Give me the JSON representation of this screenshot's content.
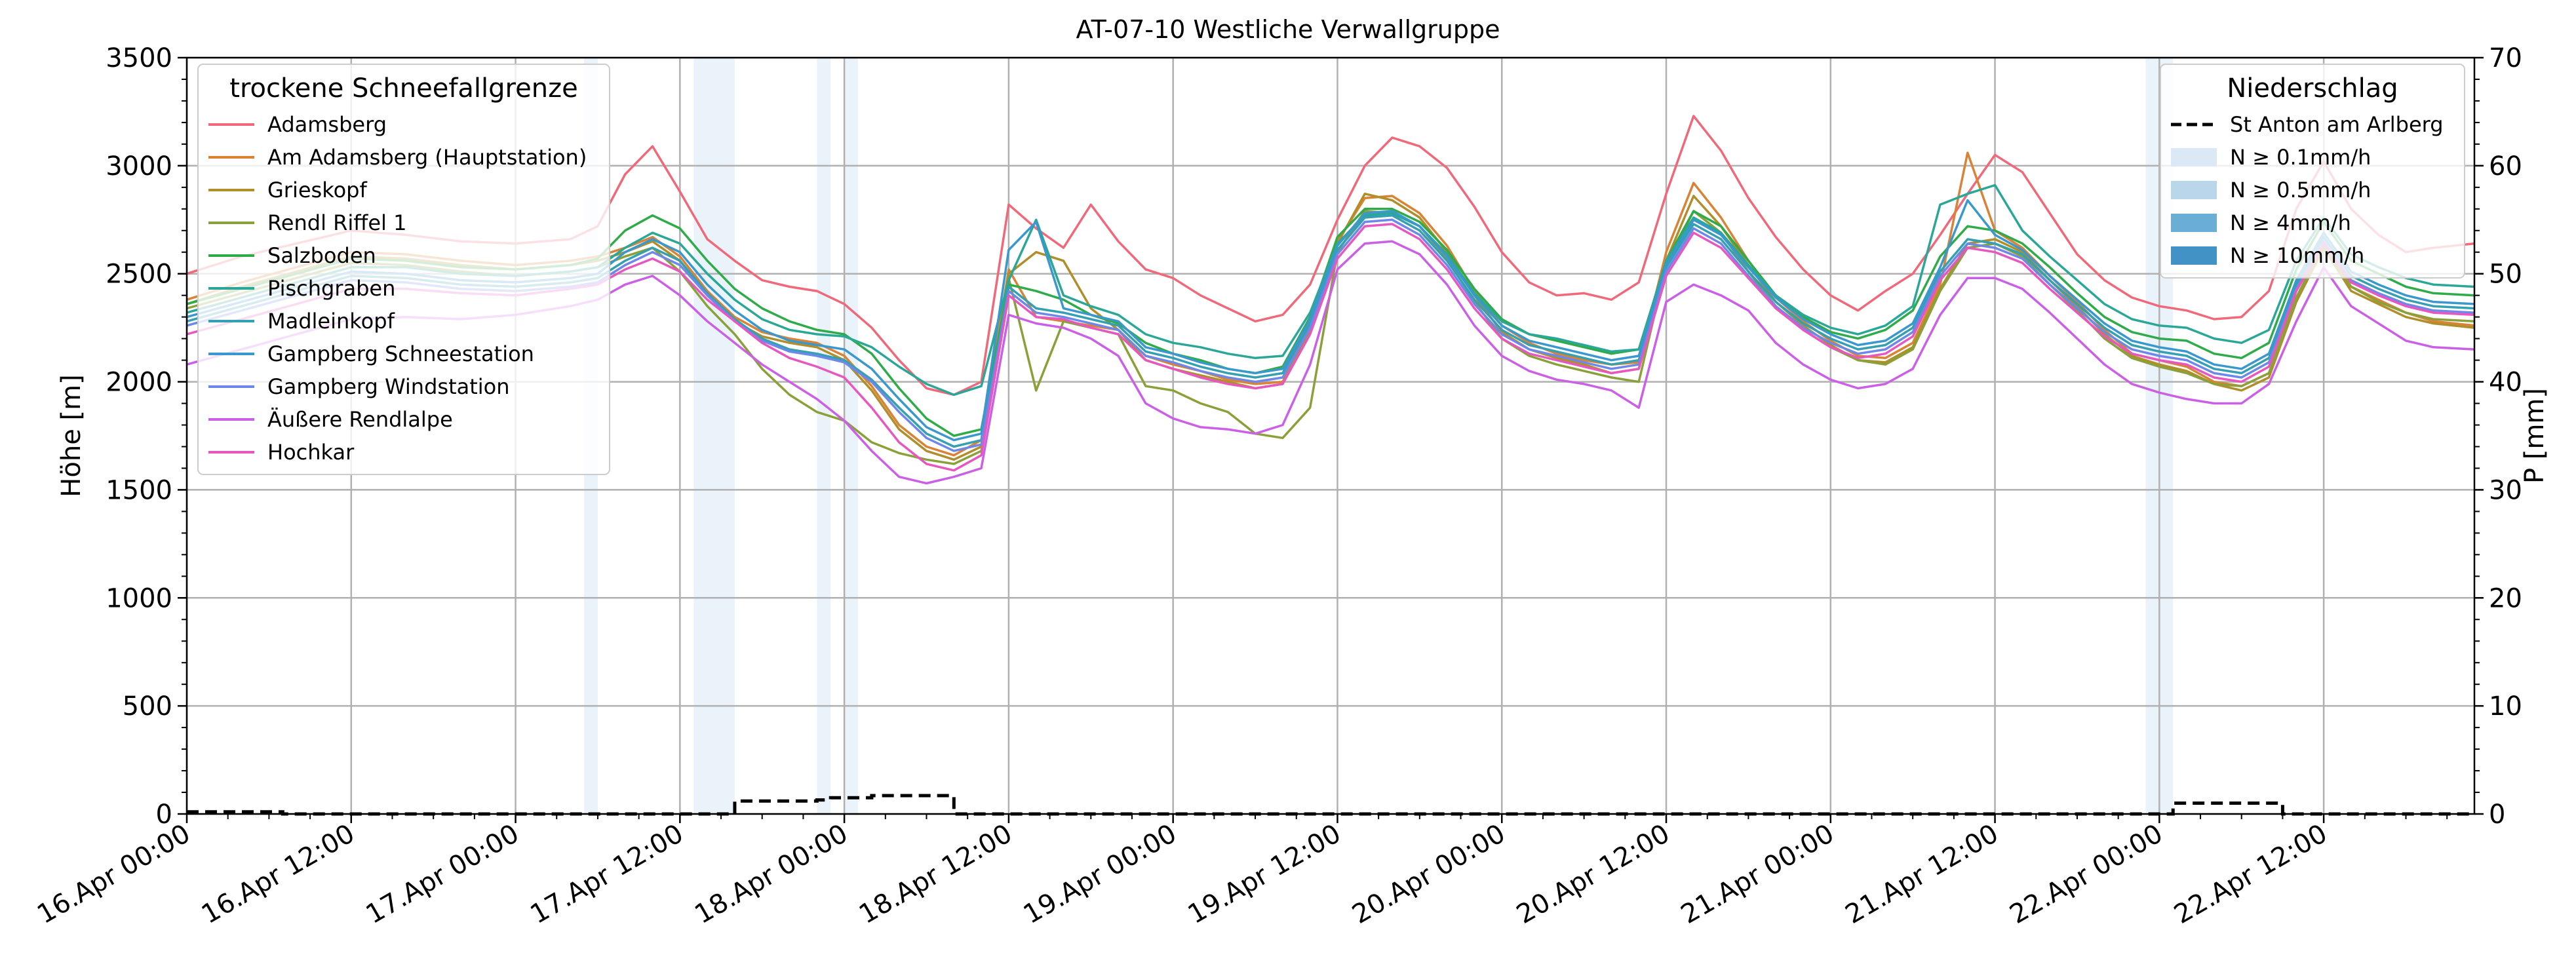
{
  "chart_data": {
    "type": "line",
    "title": "AT-07-10 Westliche Verwallgruppe",
    "ylabel": "Höhe [m]",
    "y2label": "P [mm]",
    "ylim": [
      0,
      3500
    ],
    "y2lim": [
      0,
      70
    ],
    "yticks": [
      0,
      500,
      1000,
      1500,
      2000,
      2500,
      3000,
      3500
    ],
    "y2ticks": [
      0,
      10,
      20,
      30,
      40,
      50,
      60,
      70
    ],
    "xlim_hours": [
      0,
      167
    ],
    "xticks": [
      {
        "h": 0,
        "label": "16.Apr 00:00"
      },
      {
        "h": 12,
        "label": "16.Apr 12:00"
      },
      {
        "h": 24,
        "label": "17.Apr 00:00"
      },
      {
        "h": 36,
        "label": "17.Apr 12:00"
      },
      {
        "h": 48,
        "label": "18.Apr 00:00"
      },
      {
        "h": 60,
        "label": "18.Apr 12:00"
      },
      {
        "h": 72,
        "label": "19.Apr 00:00"
      },
      {
        "h": 84,
        "label": "19.Apr 12:00"
      },
      {
        "h": 96,
        "label": "20.Apr 00:00"
      },
      {
        "h": 108,
        "label": "20.Apr 12:00"
      },
      {
        "h": 120,
        "label": "21.Apr 00:00"
      },
      {
        "h": 132,
        "label": "21.Apr 12:00"
      },
      {
        "h": 144,
        "label": "22.Apr 00:00"
      },
      {
        "h": 156,
        "label": "22.Apr 12:00"
      }
    ],
    "grid": true,
    "legend_left": {
      "title": "trockene Schneefallgrenze",
      "placement": "upper-left"
    },
    "legend_right": {
      "title": "Niederschlag",
      "placement": "upper-right",
      "entries": [
        {
          "label": "St Anton am Arlberg",
          "kind": "dashed-line",
          "color": "#000000"
        },
        {
          "label": "N ≥ 0.1mm/h",
          "kind": "patch",
          "color": "#dbe9f6"
        },
        {
          "label": "N ≥ 0.5mm/h",
          "kind": "patch",
          "color": "#bad6eb"
        },
        {
          "label": "N ≥ 4mm/h",
          "kind": "patch",
          "color": "#6aaed6"
        },
        {
          "label": "N ≥ 10mm/h",
          "kind": "patch",
          "color": "#4292c6"
        }
      ]
    },
    "precip_bands": [
      {
        "start_h": 29.0,
        "end_h": 30.0,
        "level": "N ≥ 0.1mm/h"
      },
      {
        "start_h": 37.0,
        "end_h": 40.0,
        "level": "N ≥ 0.1mm/h"
      },
      {
        "start_h": 46.0,
        "end_h": 47.0,
        "level": "N ≥ 0.1mm/h"
      },
      {
        "start_h": 48.0,
        "end_h": 49.0,
        "level": "N ≥ 0.1mm/h"
      },
      {
        "start_h": 143.0,
        "end_h": 145.0,
        "level": "N ≥ 0.1mm/h"
      }
    ],
    "precip_cumulative": {
      "name": "St Anton am Arlberg",
      "axis": "right",
      "points_h": [
        0,
        4,
        7,
        30,
        38,
        40,
        45,
        46,
        47,
        49,
        50,
        55,
        56,
        57,
        144,
        145,
        152,
        153,
        167
      ],
      "values_mm": [
        0.2,
        0.2,
        0,
        0,
        0,
        1.2,
        1.2,
        1.3,
        1.5,
        1.5,
        1.7,
        1.7,
        0,
        0,
        0,
        1.0,
        1.0,
        0,
        0
      ]
    },
    "series_time_h": [
      0,
      4,
      8,
      12,
      16,
      20,
      24,
      28,
      30,
      32,
      34,
      36,
      38,
      40,
      42,
      44,
      46,
      48,
      50,
      52,
      54,
      56,
      58,
      60,
      62,
      64,
      66,
      68,
      70,
      72,
      74,
      76,
      78,
      80,
      82,
      84,
      86,
      88,
      90,
      92,
      94,
      96,
      98,
      100,
      102,
      104,
      106,
      108,
      110,
      112,
      114,
      116,
      118,
      120,
      122,
      124,
      126,
      128,
      130,
      132,
      134,
      136,
      138,
      140,
      142,
      144,
      146,
      148,
      150,
      152,
      154,
      156,
      158,
      160,
      162,
      164,
      167
    ],
    "series": [
      {
        "name": "Adamsberg",
        "color": "#f0697a",
        "values": [
          2500,
          2580,
          2640,
          2700,
          2680,
          2650,
          2640,
          2660,
          2720,
          2960,
          3090,
          2880,
          2660,
          2560,
          2470,
          2440,
          2420,
          2360,
          2250,
          2100,
          1970,
          1940,
          2000,
          2820,
          2710,
          2620,
          2820,
          2650,
          2520,
          2480,
          2400,
          2340,
          2280,
          2310,
          2450,
          2750,
          3000,
          3130,
          3090,
          2990,
          2810,
          2600,
          2460,
          2400,
          2410,
          2380,
          2460,
          2870,
          3230,
          3070,
          2850,
          2670,
          2520,
          2400,
          2330,
          2420,
          2500,
          2680,
          2870,
          3050,
          2970,
          2780,
          2590,
          2470,
          2390,
          2350,
          2330,
          2290,
          2300,
          2420,
          2800,
          3020,
          2800,
          2680,
          2600,
          2620,
          2640
        ]
      },
      {
        "name": "Am Adamsberg (Hauptstation)",
        "color": "#d88335",
        "values": [
          2380,
          2460,
          2530,
          2600,
          2590,
          2560,
          2540,
          2560,
          2580,
          2620,
          2670,
          2580,
          2420,
          2300,
          2230,
          2200,
          2180,
          2120,
          1980,
          1800,
          1700,
          1660,
          1730,
          2520,
          2300,
          2280,
          2260,
          2240,
          2120,
          2080,
          2050,
          2010,
          1990,
          2000,
          2250,
          2650,
          2850,
          2860,
          2780,
          2630,
          2420,
          2260,
          2180,
          2130,
          2100,
          2080,
          2090,
          2600,
          2920,
          2760,
          2560,
          2390,
          2280,
          2190,
          2120,
          2110,
          2180,
          2450,
          3060,
          2700,
          2620,
          2490,
          2370,
          2240,
          2130,
          2100,
          2070,
          2000,
          1980,
          2040,
          2390,
          2640,
          2440,
          2380,
          2320,
          2280,
          2260
        ]
      },
      {
        "name": "Grieskopf",
        "color": "#b08e2a",
        "values": [
          2360,
          2440,
          2510,
          2580,
          2570,
          2540,
          2520,
          2540,
          2560,
          2600,
          2650,
          2560,
          2400,
          2280,
          2210,
          2180,
          2160,
          2100,
          1960,
          1780,
          1680,
          1640,
          1700,
          2500,
          2600,
          2560,
          2340,
          2240,
          2100,
          2060,
          2030,
          2000,
          1970,
          1990,
          2240,
          2640,
          2870,
          2840,
          2760,
          2600,
          2400,
          2230,
          2150,
          2110,
          2080,
          2040,
          2060,
          2560,
          2860,
          2720,
          2540,
          2370,
          2260,
          2170,
          2100,
          2090,
          2160,
          2430,
          2640,
          2660,
          2600,
          2470,
          2350,
          2220,
          2120,
          2080,
          2050,
          1990,
          1960,
          2020,
          2370,
          2620,
          2420,
          2360,
          2300,
          2270,
          2250
        ]
      },
      {
        "name": "Rendl Riffel 1",
        "color": "#8aa139",
        "values": [
          2340,
          2410,
          2480,
          2550,
          2540,
          2510,
          2490,
          2510,
          2530,
          2580,
          2620,
          2510,
          2350,
          2220,
          2060,
          1940,
          1860,
          1820,
          1720,
          1670,
          1640,
          1620,
          1680,
          2480,
          1960,
          2280,
          2250,
          2220,
          1980,
          1960,
          1900,
          1860,
          1760,
          1740,
          1880,
          2600,
          2790,
          2780,
          2720,
          2570,
          2370,
          2200,
          2120,
          2080,
          2050,
          2020,
          2000,
          2540,
          2790,
          2690,
          2510,
          2350,
          2240,
          2160,
          2100,
          2080,
          2150,
          2420,
          2620,
          2640,
          2580,
          2450,
          2330,
          2200,
          2110,
          2070,
          2040,
          1990,
          1980,
          2040,
          2390,
          2630,
          2440,
          2370,
          2320,
          2290,
          2280
        ]
      },
      {
        "name": "Salzboden",
        "color": "#2fab49",
        "values": [
          2360,
          2430,
          2500,
          2570,
          2560,
          2530,
          2520,
          2540,
          2570,
          2700,
          2770,
          2710,
          2560,
          2430,
          2340,
          2280,
          2240,
          2220,
          2130,
          1970,
          1830,
          1750,
          1780,
          2450,
          2420,
          2380,
          2310,
          2270,
          2180,
          2130,
          2100,
          2060,
          2040,
          2070,
          2300,
          2670,
          2800,
          2800,
          2740,
          2610,
          2430,
          2290,
          2220,
          2190,
          2160,
          2130,
          2150,
          2560,
          2790,
          2720,
          2560,
          2400,
          2300,
          2230,
          2200,
          2240,
          2330,
          2580,
          2720,
          2700,
          2640,
          2530,
          2410,
          2300,
          2230,
          2200,
          2190,
          2130,
          2110,
          2180,
          2520,
          2740,
          2560,
          2500,
          2440,
          2410,
          2400
        ]
      },
      {
        "name": "Pischgraben",
        "color": "#2aa796",
        "values": [
          2320,
          2390,
          2460,
          2530,
          2530,
          2500,
          2490,
          2510,
          2530,
          2620,
          2690,
          2640,
          2500,
          2380,
          2290,
          2240,
          2220,
          2210,
          2160,
          2070,
          1990,
          1940,
          1980,
          2470,
          2750,
          2400,
          2350,
          2310,
          2220,
          2180,
          2160,
          2130,
          2110,
          2120,
          2320,
          2640,
          2770,
          2780,
          2720,
          2590,
          2410,
          2280,
          2220,
          2200,
          2170,
          2140,
          2150,
          2560,
          2760,
          2690,
          2540,
          2400,
          2310,
          2250,
          2220,
          2260,
          2350,
          2820,
          2870,
          2910,
          2700,
          2580,
          2470,
          2360,
          2290,
          2260,
          2250,
          2200,
          2180,
          2240,
          2560,
          2760,
          2590,
          2530,
          2480,
          2450,
          2440
        ]
      },
      {
        "name": "Madleinkopf",
        "color": "#34a0b2",
        "values": [
          2280,
          2350,
          2420,
          2490,
          2480,
          2450,
          2440,
          2460,
          2480,
          2560,
          2620,
          2560,
          2410,
          2290,
          2200,
          2150,
          2130,
          2100,
          2010,
          1880,
          1760,
          1700,
          1730,
          2440,
          2340,
          2320,
          2290,
          2260,
          2140,
          2110,
          2070,
          2040,
          2020,
          2040,
          2270,
          2610,
          2760,
          2770,
          2700,
          2560,
          2380,
          2240,
          2170,
          2140,
          2110,
          2080,
          2100,
          2530,
          2730,
          2660,
          2510,
          2370,
          2270,
          2200,
          2150,
          2170,
          2250,
          2510,
          2660,
          2640,
          2590,
          2470,
          2360,
          2250,
          2170,
          2140,
          2120,
          2060,
          2040,
          2110,
          2450,
          2670,
          2490,
          2430,
          2380,
          2350,
          2340
        ]
      },
      {
        "name": "Gampberg Schneestation",
        "color": "#3a98cf",
        "values": [
          2300,
          2370,
          2440,
          2510,
          2500,
          2470,
          2460,
          2480,
          2500,
          2600,
          2660,
          2600,
          2450,
          2330,
          2240,
          2190,
          2170,
          2150,
          2060,
          1920,
          1790,
          1730,
          1760,
          2610,
          2740,
          2340,
          2310,
          2280,
          2160,
          2130,
          2090,
          2060,
          2040,
          2060,
          2290,
          2630,
          2780,
          2790,
          2720,
          2580,
          2400,
          2260,
          2190,
          2160,
          2130,
          2100,
          2120,
          2540,
          2750,
          2680,
          2530,
          2390,
          2290,
          2220,
          2170,
          2190,
          2270,
          2530,
          2840,
          2680,
          2610,
          2490,
          2380,
          2270,
          2190,
          2160,
          2140,
          2080,
          2060,
          2130,
          2470,
          2690,
          2510,
          2450,
          2400,
          2370,
          2360
        ]
      },
      {
        "name": "Gampberg Windstation",
        "color": "#6d88e8",
        "values": [
          2260,
          2330,
          2400,
          2470,
          2460,
          2430,
          2420,
          2440,
          2460,
          2540,
          2600,
          2540,
          2400,
          2280,
          2190,
          2140,
          2120,
          2090,
          2000,
          1860,
          1740,
          1680,
          1710,
          2420,
          2320,
          2300,
          2270,
          2240,
          2120,
          2090,
          2050,
          2020,
          2000,
          2020,
          2250,
          2590,
          2740,
          2750,
          2680,
          2540,
          2360,
          2220,
          2150,
          2120,
          2090,
          2060,
          2080,
          2510,
          2710,
          2640,
          2490,
          2350,
          2250,
          2180,
          2130,
          2150,
          2230,
          2490,
          2640,
          2620,
          2570,
          2450,
          2340,
          2230,
          2150,
          2120,
          2100,
          2040,
          2020,
          2090,
          2430,
          2650,
          2470,
          2410,
          2360,
          2330,
          2320
        ]
      },
      {
        "name": "Äußere Rendlalpe",
        "color": "#cb60e6",
        "values": [
          2080,
          2150,
          2220,
          2290,
          2300,
          2290,
          2310,
          2350,
          2380,
          2450,
          2490,
          2400,
          2280,
          2180,
          2080,
          2000,
          1920,
          1820,
          1680,
          1560,
          1530,
          1560,
          1600,
          2310,
          2270,
          2250,
          2200,
          2120,
          1900,
          1830,
          1790,
          1780,
          1760,
          1800,
          2080,
          2520,
          2640,
          2650,
          2590,
          2450,
          2260,
          2120,
          2050,
          2010,
          1990,
          1960,
          1880,
          2370,
          2450,
          2400,
          2330,
          2180,
          2080,
          2010,
          1970,
          1990,
          2060,
          2310,
          2480,
          2480,
          2430,
          2320,
          2200,
          2080,
          1990,
          1950,
          1920,
          1900,
          1900,
          1990,
          2280,
          2530,
          2350,
          2270,
          2190,
          2160,
          2150
        ]
      },
      {
        "name": "Hochkar",
        "color": "#e757c0",
        "values": [
          2220,
          2290,
          2360,
          2430,
          2430,
          2410,
          2400,
          2430,
          2450,
          2520,
          2570,
          2510,
          2380,
          2280,
          2180,
          2110,
          2070,
          2020,
          1880,
          1720,
          1620,
          1590,
          1660,
          2400,
          2300,
          2290,
          2250,
          2220,
          2100,
          2060,
          2020,
          1990,
          1970,
          1990,
          2220,
          2570,
          2720,
          2730,
          2660,
          2520,
          2340,
          2200,
          2130,
          2100,
          2070,
          2040,
          2060,
          2490,
          2690,
          2620,
          2480,
          2340,
          2240,
          2160,
          2110,
          2130,
          2210,
          2470,
          2620,
          2600,
          2550,
          2430,
          2320,
          2210,
          2130,
          2100,
          2080,
          2020,
          2000,
          2070,
          2420,
          2640,
          2460,
          2400,
          2350,
          2320,
          2310
        ]
      }
    ]
  }
}
